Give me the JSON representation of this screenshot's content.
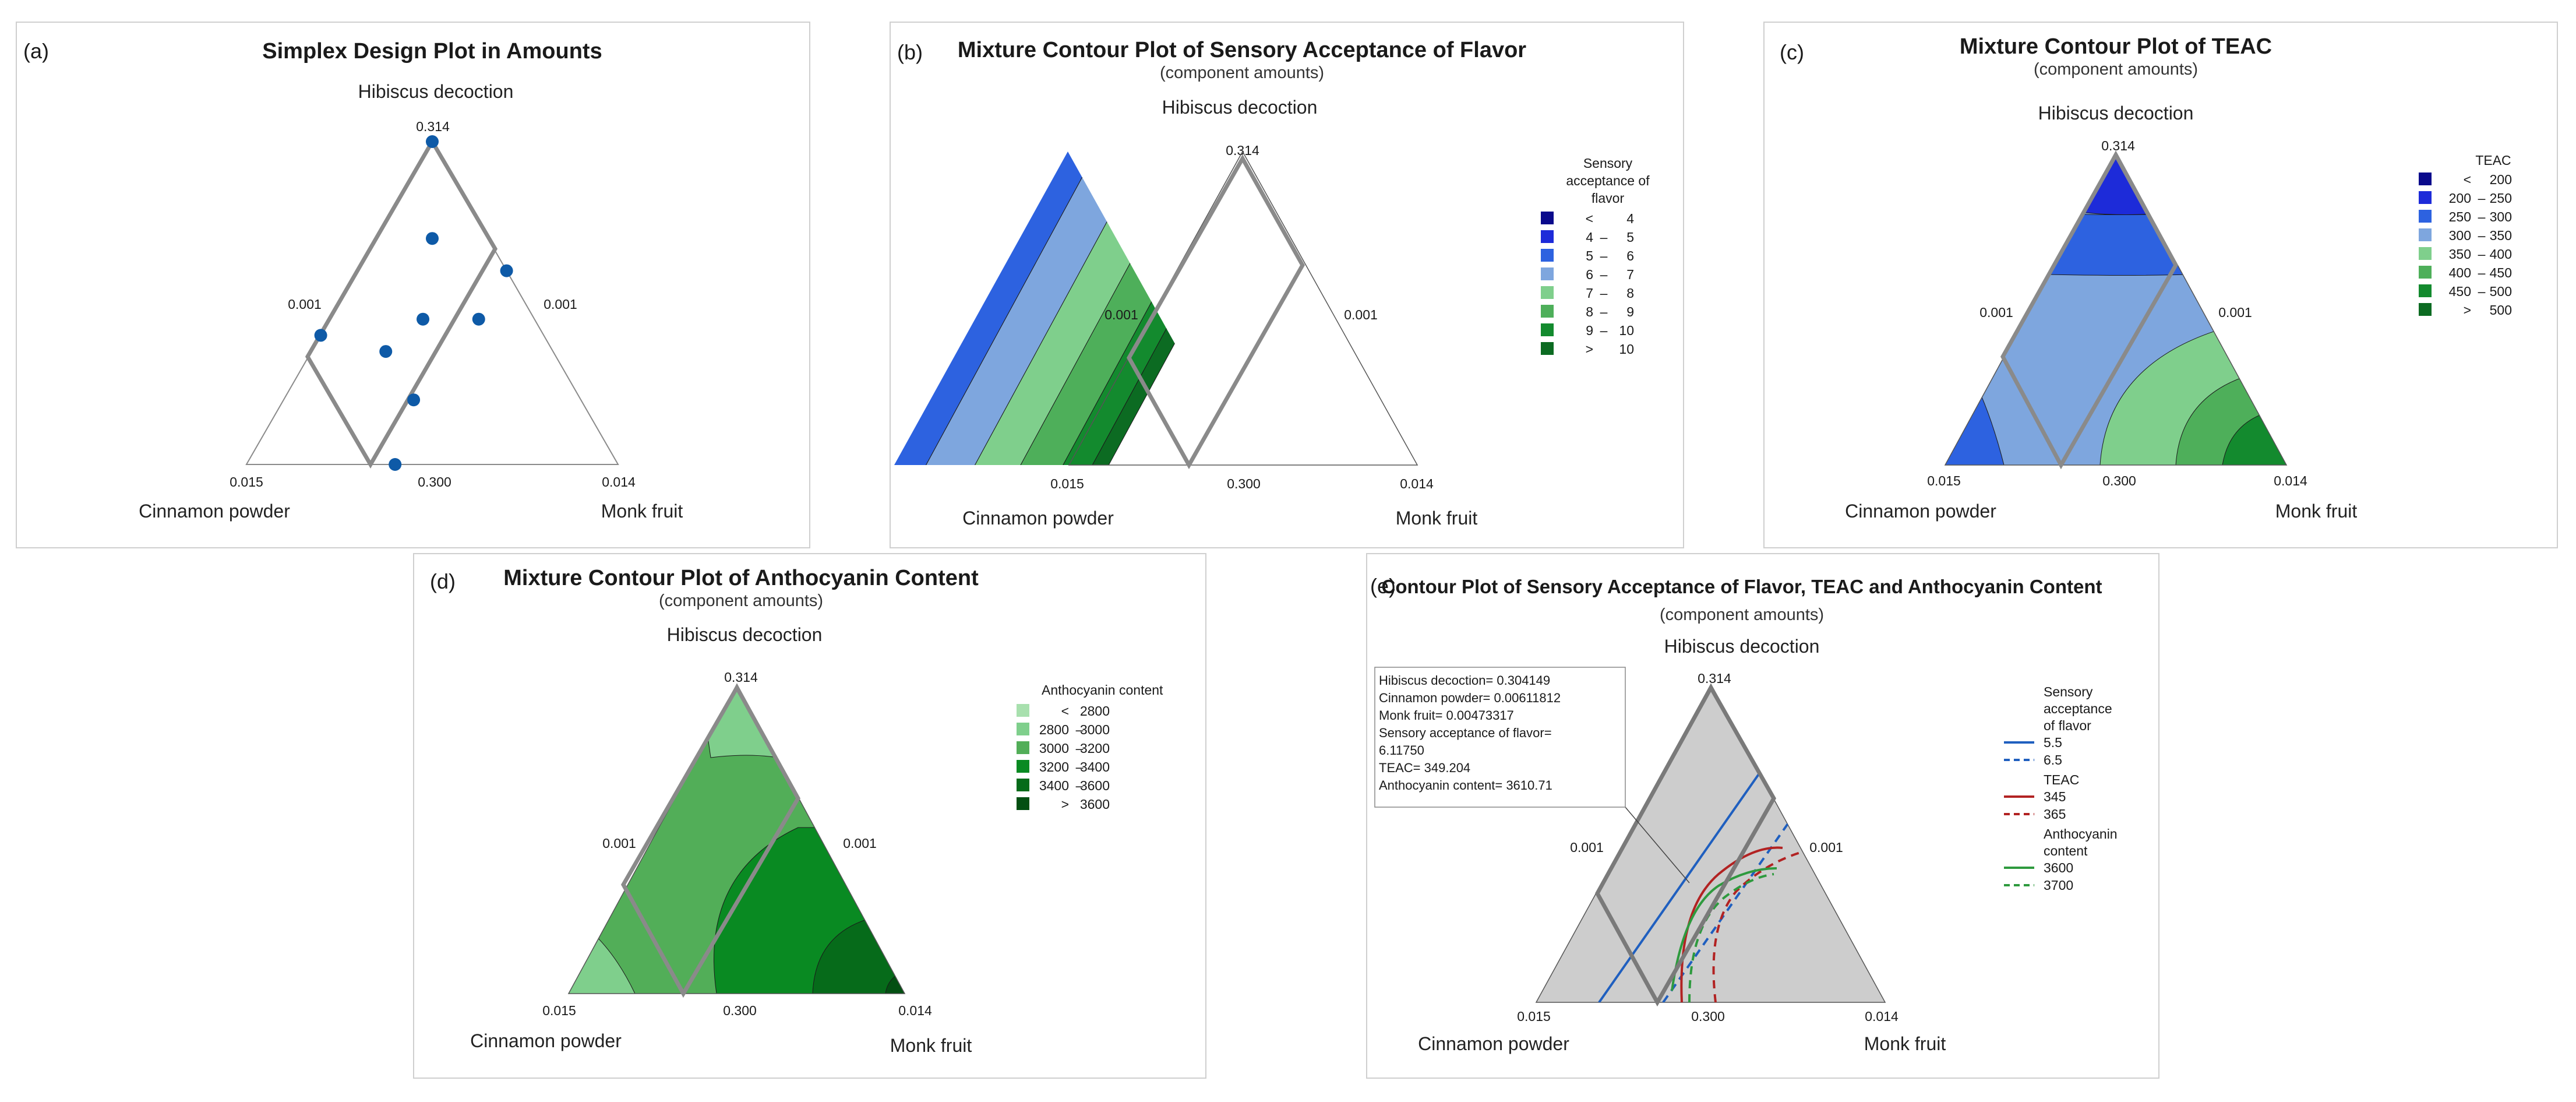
{
  "figure": {
    "panels": [
      {
        "label": "(a)",
        "title": "Simplex Design Plot in Amounts",
        "subtitle": "",
        "apex_top": "Hibiscus decoction",
        "apex_left": "Cinnamon powder",
        "apex_right": "Monk fruit",
        "apex_top_value": "0.314",
        "apex_left_value": "0.015",
        "apex_right_value": "0.014",
        "edge_left_value": "0.001",
        "edge_right_value": "0.001",
        "edge_bottom_value": "0.300"
      },
      {
        "label": "(b)",
        "title": "Mixture Contour Plot of Sensory Acceptance of Flavor",
        "subtitle": "(component amounts)",
        "apex_top": "Hibiscus decoction",
        "apex_left": "Cinnamon powder",
        "apex_right": "Monk fruit",
        "apex_top_value": "0.314",
        "apex_left_value": "0.015",
        "apex_right_value": "0.014",
        "edge_left_value": "0.001",
        "edge_right_value": "0.001",
        "edge_bottom_value": "0.300"
      },
      {
        "label": "(c)",
        "title": "Mixture Contour Plot of TEAC",
        "subtitle": "(component amounts)",
        "apex_top": "Hibiscus decoction",
        "apex_left": "Cinnamon powder",
        "apex_right": "Monk fruit",
        "apex_top_value": "0.314",
        "apex_left_value": "0.015",
        "apex_right_value": "0.014",
        "edge_left_value": "0.001",
        "edge_right_value": "0.001",
        "edge_bottom_value": "0.300"
      },
      {
        "label": "(d)",
        "title": "Mixture Contour Plot of Anthocyanin Content",
        "subtitle": "(component amounts)",
        "apex_top": "Hibiscus decoction",
        "apex_left": "Cinnamon powder",
        "apex_right": "Monk fruit",
        "apex_top_value": "0.314",
        "apex_left_value": "0.015",
        "apex_right_value": "0.014",
        "edge_left_value": "0.001",
        "edge_right_value": "0.001",
        "edge_bottom_value": "0.300"
      },
      {
        "label": "(e)",
        "title": "Contour Plot of Sensory Acceptance of Flavor, TEAC and Anthocyanin Content",
        "subtitle": "(component amounts)",
        "apex_top": "Hibiscus decoction",
        "apex_left": "Cinnamon powder",
        "apex_right": "Monk fruit",
        "apex_top_value": "0.314",
        "apex_left_value": "0.015",
        "apex_right_value": "0.014",
        "edge_left_value": "0.001",
        "edge_right_value": "0.001",
        "edge_bottom_value": "0.300"
      }
    ]
  },
  "chart_data": [
    {
      "panel": "(a)",
      "type": "scatter",
      "coordinate_system": "ternary simplex",
      "components": [
        "Hibiscus decoction",
        "Cinnamon powder",
        "Monk fruit"
      ],
      "design_points": [
        {
          "hibiscus": 1.0,
          "cinnamon": 0.0,
          "monk": 0.0
        },
        {
          "hibiscus": 0.6,
          "cinnamon": 0.0,
          "monk": 0.4
        },
        {
          "hibiscus": 0.4,
          "cinnamon": 0.6,
          "monk": 0.0
        },
        {
          "hibiscus": 0.0,
          "cinnamon": 0.6,
          "monk": 0.4
        },
        {
          "hibiscus": 0.7,
          "cinnamon": 0.15,
          "monk": 0.15
        },
        {
          "hibiscus": 0.45,
          "cinnamon": 0.15,
          "monk": 0.4
        },
        {
          "hibiscus": 0.45,
          "cinnamon": 0.3,
          "monk": 0.25
        },
        {
          "hibiscus": 0.35,
          "cinnamon": 0.45,
          "monk": 0.2
        },
        {
          "hibiscus": 0.2,
          "cinnamon": 0.45,
          "monk": 0.35
        }
      ]
    },
    {
      "panel": "(b)",
      "type": "heatmap",
      "coordinate_system": "ternary simplex",
      "legend_title": "Sensory acceptance of flavor",
      "legend_position": "right",
      "bands": [
        {
          "op": "<",
          "lo": "",
          "hi": "4",
          "color": "#0a0a8c",
          "t": 0.14
        },
        {
          "op": "–",
          "lo": "4",
          "hi": "5",
          "color": "#1d2bd9",
          "t": 0.29
        },
        {
          "op": "–",
          "lo": "5",
          "hi": "6",
          "color": "#2d62e0",
          "t": 0.44
        },
        {
          "op": "–",
          "lo": "6",
          "hi": "7",
          "color": "#7ea6de",
          "t": 0.59
        },
        {
          "op": "–",
          "lo": "7",
          "hi": "8",
          "color": "#7fcf8c",
          "t": 0.73
        },
        {
          "op": "–",
          "lo": "8",
          "hi": "9",
          "color": "#4eaf5a",
          "t": 0.86
        },
        {
          "op": "–",
          "lo": "9",
          "hi": "10",
          "color": "#138a2e",
          "t": 0.95
        },
        {
          "op": ">",
          "lo": "",
          "hi": "10",
          "color": "#0c6b22",
          "t": 1.0
        }
      ]
    },
    {
      "panel": "(c)",
      "type": "heatmap",
      "coordinate_system": "ternary simplex",
      "legend_title": "TEAC",
      "legend_position": "right",
      "bands": [
        {
          "op": "<",
          "lo": "",
          "hi": "200",
          "color": "#0a0a8c"
        },
        {
          "op": "–",
          "lo": "200",
          "hi": "250",
          "color": "#1d2bd9"
        },
        {
          "op": "–",
          "lo": "250",
          "hi": "300",
          "color": "#2d62e0"
        },
        {
          "op": "–",
          "lo": "300",
          "hi": "350",
          "color": "#7ea6de"
        },
        {
          "op": "–",
          "lo": "350",
          "hi": "400",
          "color": "#7fcf8c"
        },
        {
          "op": "–",
          "lo": "400",
          "hi": "450",
          "color": "#4eaf5a"
        },
        {
          "op": "–",
          "lo": "450",
          "hi": "500",
          "color": "#138a2e"
        },
        {
          "op": ">",
          "lo": "",
          "hi": "500",
          "color": "#0c6b22"
        }
      ]
    },
    {
      "panel": "(d)",
      "type": "heatmap",
      "coordinate_system": "ternary simplex",
      "legend_title": "Anthocyanin content",
      "legend_position": "right",
      "bands": [
        {
          "op": "<",
          "lo": "",
          "hi": "2800",
          "color": "#a8e0ae"
        },
        {
          "op": "–",
          "lo": "2800",
          "hi": "3000",
          "color": "#7fcf8c"
        },
        {
          "op": "–",
          "lo": "3000",
          "hi": "3200",
          "color": "#52ae58"
        },
        {
          "op": "–",
          "lo": "3200",
          "hi": "3400",
          "color": "#098a22"
        },
        {
          "op": "–",
          "lo": "3400",
          "hi": "3600",
          "color": "#066b1a"
        },
        {
          "op": ">",
          "lo": "",
          "hi": "3600",
          "color": "#034f12"
        }
      ]
    },
    {
      "panel": "(e)",
      "type": "line",
      "coordinate_system": "ternary simplex overlaid contours",
      "legend_position": "right",
      "legend_groups": [
        {
          "title": "Sensory acceptance of flavor",
          "color": "#1f5fbf",
          "series": [
            {
              "name": "5.5",
              "style": "solid"
            },
            {
              "name": "6.5",
              "style": "dashed"
            }
          ]
        },
        {
          "title": "TEAC",
          "color": "#b22222",
          "series": [
            {
              "name": "345",
              "style": "solid"
            },
            {
              "name": "365",
              "style": "dashed"
            }
          ]
        },
        {
          "title": "Anthocyanin content",
          "color": "#2e9a3e",
          "series": [
            {
              "name": "3600",
              "style": "solid"
            },
            {
              "name": "3700",
              "style": "dashed"
            }
          ]
        }
      ],
      "optimum_readout": [
        "Hibiscus decoction= 0.304149",
        "Cinnamon powder= 0.00611812",
        "Monk fruit= 0.00473317",
        "Sensory acceptance of flavor=",
        "6.11750",
        "TEAC= 349.204",
        "Anthocyanin content= 3610.71"
      ]
    }
  ]
}
